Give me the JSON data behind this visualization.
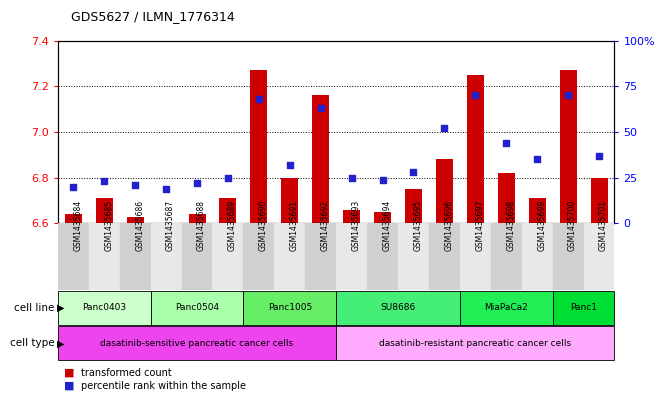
{
  "title": "GDS5627 / ILMN_1776314",
  "samples": [
    "GSM1435684",
    "GSM1435685",
    "GSM1435686",
    "GSM1435687",
    "GSM1435688",
    "GSM1435689",
    "GSM1435690",
    "GSM1435691",
    "GSM1435692",
    "GSM1435693",
    "GSM1435694",
    "GSM1435695",
    "GSM1435696",
    "GSM1435697",
    "GSM1435698",
    "GSM1435699",
    "GSM1435700",
    "GSM1435701"
  ],
  "transformed_count": [
    6.64,
    6.71,
    6.63,
    6.6,
    6.64,
    6.71,
    7.27,
    6.8,
    7.16,
    6.66,
    6.65,
    6.75,
    6.88,
    7.25,
    6.82,
    6.71,
    7.27,
    6.8
  ],
  "percentile_rank": [
    20,
    23,
    21,
    19,
    22,
    25,
    68,
    32,
    63,
    25,
    24,
    28,
    52,
    70,
    44,
    35,
    70,
    37
  ],
  "ylim_left": [
    6.6,
    7.4
  ],
  "ylim_right": [
    0,
    100
  ],
  "yticks_left": [
    6.6,
    6.8,
    7.0,
    7.2,
    7.4
  ],
  "yticks_right": [
    0,
    25,
    50,
    75,
    100
  ],
  "bar_color": "#cc0000",
  "dot_color": "#2222cc",
  "cell_lines": [
    {
      "name": "Panc0403",
      "start": 0,
      "end": 2,
      "color": "#ccffcc"
    },
    {
      "name": "Panc0504",
      "start": 3,
      "end": 5,
      "color": "#aaffaa"
    },
    {
      "name": "Panc1005",
      "start": 6,
      "end": 8,
      "color": "#66ee66"
    },
    {
      "name": "SU8686",
      "start": 9,
      "end": 12,
      "color": "#44ee77"
    },
    {
      "name": "MiaPaCa2",
      "start": 13,
      "end": 15,
      "color": "#22ee55"
    },
    {
      "name": "Panc1",
      "start": 16,
      "end": 17,
      "color": "#00dd33"
    }
  ],
  "cell_types": [
    {
      "name": "dasatinib-sensitive pancreatic cancer cells",
      "start": 0,
      "end": 8,
      "color": "#ee44ee"
    },
    {
      "name": "dasatinib-resistant pancreatic cancer cells",
      "start": 9,
      "end": 17,
      "color": "#ffaaff"
    }
  ],
  "legend_red": "transformed count",
  "legend_blue": "percentile rank within the sample",
  "cell_line_label": "cell line",
  "cell_type_label": "cell type",
  "tick_col_even": "#d0d0d0",
  "tick_col_odd": "#e8e8e8"
}
